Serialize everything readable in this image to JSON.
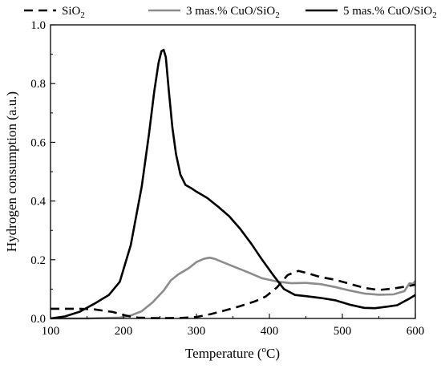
{
  "chart_data": {
    "type": "line",
    "title": "",
    "xlabel": "Temperature (",
    "xlabel_sup": "o",
    "xlabel_end": "C)",
    "ylabel": "Hydrogen consumption (a.u.)",
    "xlim": [
      100,
      600
    ],
    "ylim": [
      0.0,
      1.0
    ],
    "x_ticks": [
      100,
      200,
      300,
      400,
      500,
      600
    ],
    "y_ticks": [
      0.0,
      0.2,
      0.4,
      0.6,
      0.8,
      1.0
    ],
    "x_tick_labels": [
      "100",
      "200",
      "300",
      "400",
      "500",
      "600"
    ],
    "y_tick_labels": [
      "0.0",
      "0.2",
      "0.4",
      "0.6",
      "0.8",
      "1.0"
    ],
    "grid": false,
    "legend_position": "top",
    "series": [
      {
        "name": "SiO2",
        "label_base": "SiO",
        "label_sub": "2",
        "label_tail": "",
        "color": "#000000",
        "style": "dashed",
        "x": [
          100,
          140,
          160,
          185,
          200,
          210,
          220,
          240,
          260,
          280,
          300,
          320,
          340,
          360,
          380,
          395,
          410,
          425,
          440,
          455,
          470,
          490,
          510,
          530,
          550,
          570,
          590,
          600
        ],
        "y": [
          0.033,
          0.033,
          0.031,
          0.022,
          0.012,
          0.006,
          0.003,
          0.001,
          0.001,
          0.002,
          0.005,
          0.015,
          0.028,
          0.042,
          0.058,
          0.075,
          0.105,
          0.148,
          0.162,
          0.152,
          0.141,
          0.132,
          0.118,
          0.104,
          0.097,
          0.102,
          0.11,
          0.115
        ]
      },
      {
        "name": "3 mas.% CuO/SiO2",
        "label_base": "3 mas.% CuO/SiO",
        "label_sub": "2",
        "label_tail": "",
        "color": "#8c8c8c",
        "style": "solid",
        "x": [
          100,
          150,
          195,
          210,
          225,
          240,
          255,
          265,
          275,
          290,
          300,
          310,
          318,
          325,
          335,
          350,
          370,
          390,
          410,
          430,
          450,
          470,
          490,
          510,
          530,
          550,
          570,
          585,
          592,
          597,
          600
        ],
        "y": [
          0.0,
          0.0,
          0.003,
          0.01,
          0.025,
          0.055,
          0.095,
          0.13,
          0.15,
          0.172,
          0.192,
          0.203,
          0.207,
          0.203,
          0.193,
          0.178,
          0.158,
          0.137,
          0.126,
          0.12,
          0.121,
          0.117,
          0.107,
          0.095,
          0.085,
          0.081,
          0.082,
          0.093,
          0.12,
          0.118,
          0.128
        ]
      },
      {
        "name": "5 mas.% CuO/SiO2",
        "label_base": "5 mas.% CuO/SiO",
        "label_sub": "2",
        "label_tail": "",
        "color": "#000000",
        "style": "solid",
        "x": [
          100,
          120,
          140,
          160,
          180,
          195,
          210,
          225,
          235,
          242,
          248,
          252,
          255,
          258,
          262,
          267,
          272,
          278,
          285,
          292,
          300,
          315,
          330,
          345,
          360,
          375,
          390,
          405,
          420,
          435,
          450,
          470,
          490,
          510,
          530,
          545,
          560,
          575,
          590,
          600
        ],
        "y": [
          0.0,
          0.007,
          0.023,
          0.05,
          0.08,
          0.125,
          0.25,
          0.45,
          0.63,
          0.77,
          0.87,
          0.91,
          0.915,
          0.89,
          0.78,
          0.65,
          0.56,
          0.49,
          0.455,
          0.445,
          0.432,
          0.41,
          0.38,
          0.348,
          0.305,
          0.255,
          0.2,
          0.148,
          0.1,
          0.08,
          0.076,
          0.07,
          0.062,
          0.047,
          0.036,
          0.035,
          0.04,
          0.045,
          0.065,
          0.08
        ]
      }
    ]
  }
}
